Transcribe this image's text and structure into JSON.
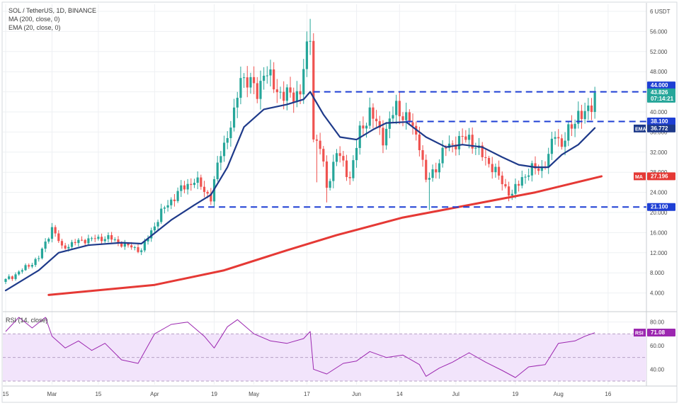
{
  "header": {
    "symbol": "SOL / TetherUS, 1D, BINANCE",
    "indicator_ma": "MA (200, close, 0)",
    "indicator_ema": "EMA (20, close, 0)"
  },
  "colors": {
    "up": "#26a69a",
    "down": "#ef5350",
    "ema": "#1e3a8a",
    "ma": "#e53935",
    "level_line": "#1e3fd4",
    "rsi_line": "#9c27b0",
    "rsi_band": "#f2e4fb",
    "grid": "#eef0f3",
    "axis_text": "#4a4a4a"
  },
  "chart_data": [
    {
      "type": "candlestick",
      "pair": "SOL / TetherUS",
      "interval": "1D",
      "ylim": [
        0,
        60
      ],
      "y_ticks": [
        {
          "label": "6 USDT",
          "v": 60
        },
        {
          "label": "56.000",
          "v": 56
        },
        {
          "label": "52.000",
          "v": 52
        },
        {
          "label": "48.000",
          "v": 48
        },
        {
          "label": "44.000",
          "v": 44
        },
        {
          "label": "40.000",
          "v": 40
        },
        {
          "label": "36.000",
          "v": 36
        },
        {
          "label": "32.000",
          "v": 32
        },
        {
          "label": "28.000",
          "v": 28
        },
        {
          "label": "24.000",
          "v": 24
        },
        {
          "label": "20.000",
          "v": 20
        },
        {
          "label": "16.000",
          "v": 16
        },
        {
          "label": "12.000",
          "v": 12
        },
        {
          "label": "8.000",
          "v": 8
        },
        {
          "label": "4.000",
          "v": 4
        }
      ],
      "x_ticks": [
        {
          "label": "15",
          "day": 0
        },
        {
          "label": "Mar",
          "day": 14
        },
        {
          "label": "15",
          "day": 28
        },
        {
          "label": "Apr",
          "day": 45
        },
        {
          "label": "19",
          "day": 63
        },
        {
          "label": "May",
          "day": 75
        },
        {
          "label": "17",
          "day": 91
        },
        {
          "label": "Jun",
          "day": 106
        },
        {
          "label": "14",
          "day": 119
        },
        {
          "label": "Jul",
          "day": 136
        },
        {
          "label": "19",
          "day": 154
        },
        {
          "label": "Aug",
          "day": 167
        },
        {
          "label": "16",
          "day": 182
        }
      ],
      "levels": [
        {
          "label": "44.000",
          "price": 44.0,
          "from_day": 93
        },
        {
          "label": "38.100",
          "price": 38.1,
          "from_day": 121
        },
        {
          "label": "21.100",
          "price": 21.1,
          "from_day": 58
        }
      ],
      "last_price": {
        "value": "43.826",
        "timer": "07:14:21",
        "price": 43.826
      },
      "ema": {
        "name": "EMA",
        "value": "36.772",
        "price": 36.772
      },
      "ma": {
        "name": "MA",
        "value": "27.196",
        "price": 27.196
      },
      "candle_keyframes": [
        {
          "day": 0,
          "close": 6.5
        },
        {
          "day": 6,
          "close": 9.0
        },
        {
          "day": 10,
          "close": 11.0
        },
        {
          "day": 14,
          "close": 17.0
        },
        {
          "day": 17,
          "close": 13.0
        },
        {
          "day": 23,
          "close": 14.5
        },
        {
          "day": 31,
          "close": 15.0
        },
        {
          "day": 36,
          "close": 13.5
        },
        {
          "day": 41,
          "close": 12.5
        },
        {
          "day": 47,
          "close": 20.0
        },
        {
          "day": 52,
          "close": 24.0
        },
        {
          "day": 57,
          "close": 26.5
        },
        {
          "day": 62,
          "close": 23.0
        },
        {
          "day": 65,
          "close": 32.0
        },
        {
          "day": 69,
          "close": 39.0
        },
        {
          "day": 71,
          "close": 47.5
        },
        {
          "day": 76,
          "close": 44.0
        },
        {
          "day": 78,
          "close": 48.0
        },
        {
          "day": 84,
          "close": 43.0
        },
        {
          "day": 89,
          "close": 44.0
        },
        {
          "day": 92,
          "close": 56.0
        },
        {
          "day": 93,
          "close": 35.0
        },
        {
          "day": 95,
          "close": 33.0
        },
        {
          "day": 97,
          "close": 25.0
        },
        {
          "day": 100,
          "close": 32.0
        },
        {
          "day": 104,
          "close": 27.0
        },
        {
          "day": 107,
          "close": 36.0
        },
        {
          "day": 110,
          "close": 40.0
        },
        {
          "day": 114,
          "close": 35.0
        },
        {
          "day": 118,
          "close": 41.0
        },
        {
          "day": 122,
          "close": 38.0
        },
        {
          "day": 125,
          "close": 34.0
        },
        {
          "day": 127,
          "close": 26.0
        },
        {
          "day": 130,
          "close": 29.0
        },
        {
          "day": 133,
          "close": 33.0
        },
        {
          "day": 136,
          "close": 34.0
        },
        {
          "day": 140,
          "close": 35.0
        },
        {
          "day": 143,
          "close": 32.0
        },
        {
          "day": 146,
          "close": 30.0
        },
        {
          "day": 149,
          "close": 27.0
        },
        {
          "day": 151,
          "close": 25.0
        },
        {
          "day": 153,
          "close": 23.5
        },
        {
          "day": 156,
          "close": 27.0
        },
        {
          "day": 159,
          "close": 28.5
        },
        {
          "day": 162,
          "close": 29.0
        },
        {
          "day": 164,
          "close": 31.0
        },
        {
          "day": 166,
          "close": 36.0
        },
        {
          "day": 168,
          "close": 33.5
        },
        {
          "day": 171,
          "close": 37.0
        },
        {
          "day": 173,
          "close": 40.0
        },
        {
          "day": 175,
          "close": 39.0
        },
        {
          "day": 177,
          "close": 41.5
        },
        {
          "day": 178,
          "close": 43.8
        }
      ],
      "wick_outliers": [
        {
          "day": 92,
          "high": 58.5
        },
        {
          "day": 94,
          "low": 26.0
        },
        {
          "day": 97,
          "low": 22.0
        },
        {
          "day": 128,
          "low": 20.5
        },
        {
          "day": 153,
          "low": 22.5
        },
        {
          "day": 178,
          "high": 45.0
        }
      ],
      "ma_path": [
        {
          "day": 13,
          "v": 3.6
        },
        {
          "day": 45,
          "v": 5.6
        },
        {
          "day": 66,
          "v": 8.5
        },
        {
          "day": 85,
          "v": 12.5
        },
        {
          "day": 100,
          "v": 15.5
        },
        {
          "day": 120,
          "v": 19.0
        },
        {
          "day": 140,
          "v": 21.5
        },
        {
          "day": 160,
          "v": 24.0
        },
        {
          "day": 180,
          "v": 27.2
        }
      ],
      "ema_path": [
        {
          "day": 0,
          "v": 4.5
        },
        {
          "day": 10,
          "v": 8.5
        },
        {
          "day": 16,
          "v": 12.0
        },
        {
          "day": 25,
          "v": 13.5
        },
        {
          "day": 35,
          "v": 14.0
        },
        {
          "day": 41,
          "v": 13.8
        },
        {
          "day": 50,
          "v": 18.5
        },
        {
          "day": 57,
          "v": 21.5
        },
        {
          "day": 62,
          "v": 23.5
        },
        {
          "day": 67,
          "v": 29.0
        },
        {
          "day": 72,
          "v": 37.0
        },
        {
          "day": 78,
          "v": 40.5
        },
        {
          "day": 85,
          "v": 41.5
        },
        {
          "day": 90,
          "v": 42.5
        },
        {
          "day": 92,
          "v": 44.0
        },
        {
          "day": 96,
          "v": 39.5
        },
        {
          "day": 101,
          "v": 35.0
        },
        {
          "day": 106,
          "v": 34.5
        },
        {
          "day": 111,
          "v": 36.5
        },
        {
          "day": 115,
          "v": 37.8
        },
        {
          "day": 121,
          "v": 38.0
        },
        {
          "day": 127,
          "v": 35.0
        },
        {
          "day": 133,
          "v": 33.0
        },
        {
          "day": 138,
          "v": 33.5
        },
        {
          "day": 144,
          "v": 33.0
        },
        {
          "day": 150,
          "v": 31.0
        },
        {
          "day": 155,
          "v": 29.5
        },
        {
          "day": 160,
          "v": 29.0
        },
        {
          "day": 164,
          "v": 29.0
        },
        {
          "day": 168,
          "v": 31.5
        },
        {
          "day": 173,
          "v": 33.5
        },
        {
          "day": 178,
          "v": 36.8
        }
      ]
    },
    {
      "type": "line",
      "title": "RSI (14, close)",
      "ylim": [
        27,
        87
      ],
      "y_ticks": [
        {
          "label": "80.00",
          "v": 80
        },
        {
          "label": "60.00",
          "v": 60
        },
        {
          "label": "40.00",
          "v": 40
        }
      ],
      "band": [
        30,
        70
      ],
      "midline": 50,
      "current": {
        "name": "RSI",
        "value": "71.08",
        "v": 71.08
      },
      "series": [
        {
          "day": 0,
          "v": 72
        },
        {
          "day": 4,
          "v": 84
        },
        {
          "day": 8,
          "v": 75
        },
        {
          "day": 12,
          "v": 84
        },
        {
          "day": 14,
          "v": 68
        },
        {
          "day": 18,
          "v": 58
        },
        {
          "day": 22,
          "v": 64
        },
        {
          "day": 26,
          "v": 56
        },
        {
          "day": 30,
          "v": 62
        },
        {
          "day": 35,
          "v": 48
        },
        {
          "day": 40,
          "v": 45
        },
        {
          "day": 45,
          "v": 70
        },
        {
          "day": 50,
          "v": 78
        },
        {
          "day": 55,
          "v": 80
        },
        {
          "day": 60,
          "v": 68
        },
        {
          "day": 63,
          "v": 58
        },
        {
          "day": 67,
          "v": 76
        },
        {
          "day": 70,
          "v": 82
        },
        {
          "day": 75,
          "v": 70
        },
        {
          "day": 80,
          "v": 64
        },
        {
          "day": 85,
          "v": 62
        },
        {
          "day": 90,
          "v": 66
        },
        {
          "day": 92,
          "v": 72
        },
        {
          "day": 93,
          "v": 40
        },
        {
          "day": 97,
          "v": 36
        },
        {
          "day": 102,
          "v": 45
        },
        {
          "day": 106,
          "v": 47
        },
        {
          "day": 110,
          "v": 55
        },
        {
          "day": 115,
          "v": 50
        },
        {
          "day": 120,
          "v": 52
        },
        {
          "day": 125,
          "v": 44
        },
        {
          "day": 127,
          "v": 34
        },
        {
          "day": 131,
          "v": 41
        },
        {
          "day": 135,
          "v": 46
        },
        {
          "day": 140,
          "v": 54
        },
        {
          "day": 145,
          "v": 46
        },
        {
          "day": 150,
          "v": 39
        },
        {
          "day": 154,
          "v": 33
        },
        {
          "day": 158,
          "v": 42
        },
        {
          "day": 163,
          "v": 44
        },
        {
          "day": 167,
          "v": 62
        },
        {
          "day": 172,
          "v": 64
        },
        {
          "day": 175,
          "v": 68
        },
        {
          "day": 178,
          "v": 71
        }
      ]
    }
  ]
}
